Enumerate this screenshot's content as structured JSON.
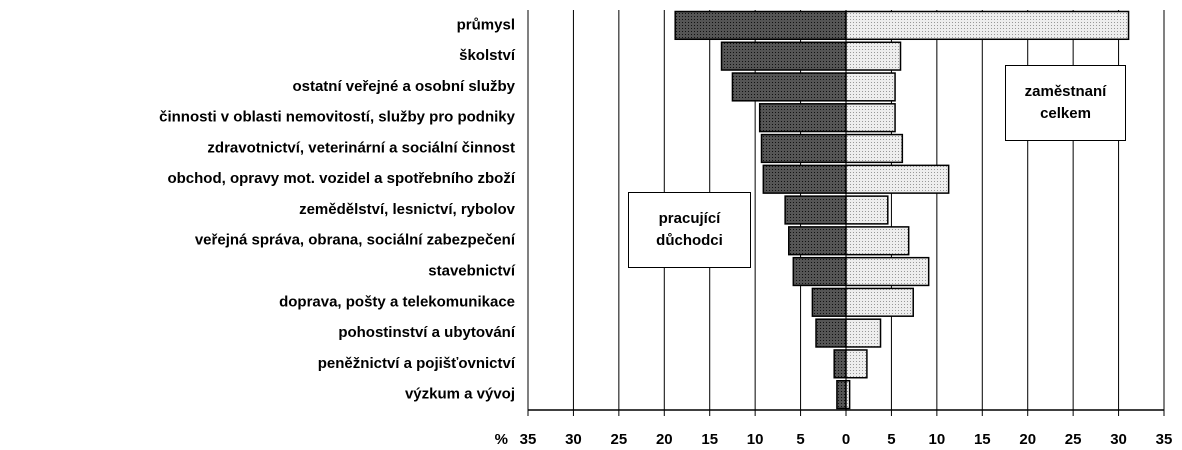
{
  "chart_data": {
    "type": "butterfly",
    "xlabel": "%",
    "categories": [
      "průmysl",
      "školství",
      "ostatní veřejné a osobní služby",
      "činnosti v oblasti nemovitostí, služby pro podniky",
      "zdravotnictví, veterinární a sociální činnost",
      "obchod, opravy mot. vozidel a spotřebního zboží",
      "zemědělství, lesnictví, rybolov",
      "veřejná správa, obrana, sociální zabezpečení",
      "stavebnictví",
      "doprava, pošty a telekomunikace",
      "pohostinství a ubytování",
      "peněžnictví a pojišťovnictví",
      "výzkum a vývoj"
    ],
    "series": [
      {
        "name": "pracující důchodci",
        "color": "#555555",
        "values": [
          -18.8,
          -13.7,
          -12.5,
          -9.5,
          -9.3,
          -9.1,
          -6.7,
          -6.3,
          -5.8,
          -3.7,
          -3.3,
          -1.3,
          -1.0
        ]
      },
      {
        "name": "zaměstnaní celkem",
        "color": "#eeeeee",
        "values": [
          31.1,
          6.0,
          5.4,
          5.4,
          6.2,
          11.3,
          4.6,
          6.9,
          9.1,
          7.4,
          3.8,
          2.3,
          0.4
        ]
      }
    ],
    "xlim": [
      -35,
      35
    ],
    "xticks": [
      {
        "value": -35,
        "label": "35"
      },
      {
        "value": -30,
        "label": "30"
      },
      {
        "value": -25,
        "label": "25"
      },
      {
        "value": -20,
        "label": "20"
      },
      {
        "value": -15,
        "label": "15"
      },
      {
        "value": -10,
        "label": "10"
      },
      {
        "value": -5,
        "label": "5"
      },
      0,
      5,
      10,
      15,
      20,
      25,
      30,
      35
    ],
    "grid": true
  }
}
